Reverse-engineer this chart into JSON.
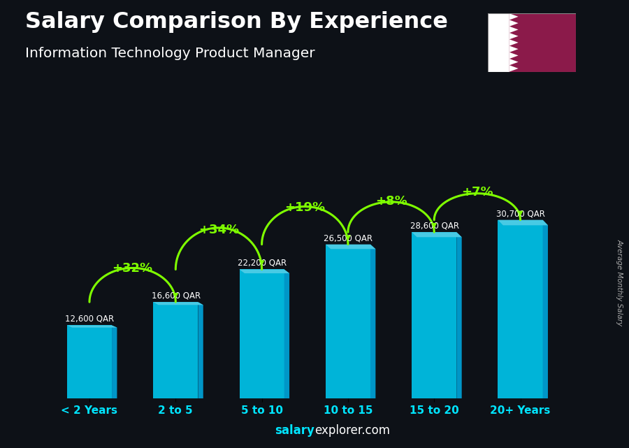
{
  "title": "Salary Comparison By Experience",
  "subtitle": "Information Technology Product Manager",
  "categories": [
    "< 2 Years",
    "2 to 5",
    "5 to 10",
    "10 to 15",
    "15 to 20",
    "20+ Years"
  ],
  "values": [
    12600,
    16600,
    22200,
    26500,
    28600,
    30700
  ],
  "bar_color_main": "#00b4d8",
  "bar_color_right": "#0096c7",
  "bar_color_top": "#48cae4",
  "pct_changes": [
    "+32%",
    "+34%",
    "+19%",
    "+8%",
    "+7%"
  ],
  "value_labels": [
    "12,600 QAR",
    "16,600 QAR",
    "22,200 QAR",
    "26,500 QAR",
    "28,600 QAR",
    "30,700 QAR"
  ],
  "ylabel": "Average Monthly Salary",
  "footer_bold": "salary",
  "footer_regular": "explorer.com",
  "title_color": "#ffffff",
  "subtitle_color": "#ffffff",
  "label_color": "#ffffff",
  "pct_color": "#7fff00",
  "arrow_color": "#7fff00",
  "bg_color": "#0d1117",
  "tick_color": "#00e5ff",
  "ylim": [
    0,
    40000
  ],
  "bar_width": 0.52,
  "flag_maroon": "#8B1A4A",
  "flag_white": "#ffffff"
}
